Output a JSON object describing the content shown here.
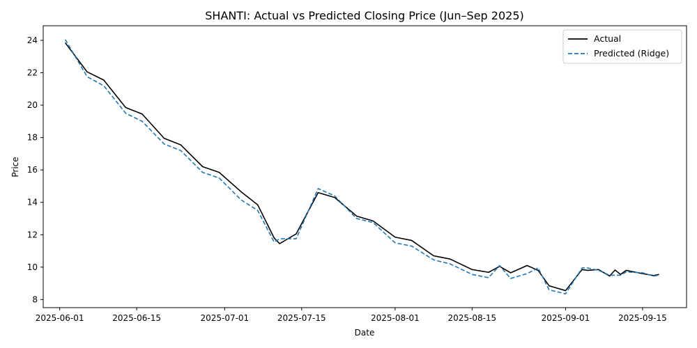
{
  "chart_data": {
    "type": "line",
    "title": "SHANTI: Actual vs Predicted Closing Price (Jun–Sep 2025)",
    "xlabel": "Date",
    "ylabel": "Price",
    "xlim": [
      "2025-05-29",
      "2025-09-23"
    ],
    "ylim": [
      7.5,
      24.9
    ],
    "x_ticks": [
      "2025-06-01",
      "2025-06-15",
      "2025-07-01",
      "2025-07-15",
      "2025-08-01",
      "2025-08-15",
      "2025-09-01",
      "2025-09-15"
    ],
    "y_ticks": [
      8,
      10,
      12,
      14,
      16,
      18,
      20,
      22,
      24
    ],
    "grid": false,
    "legend_position": "top-right",
    "series": [
      {
        "name": "Actual",
        "color": "#000000",
        "style": "solid",
        "x": [
          "2025-06-02",
          "2025-06-06",
          "2025-06-09",
          "2025-06-13",
          "2025-06-16",
          "2025-06-20",
          "2025-06-23",
          "2025-06-27",
          "2025-06-30",
          "2025-07-04",
          "2025-07-07",
          "2025-07-10",
          "2025-07-11",
          "2025-07-14",
          "2025-07-18",
          "2025-07-21",
          "2025-07-25",
          "2025-07-28",
          "2025-08-01",
          "2025-08-04",
          "2025-08-08",
          "2025-08-11",
          "2025-08-15",
          "2025-08-18",
          "2025-08-20",
          "2025-08-22",
          "2025-08-25",
          "2025-08-27",
          "2025-08-29",
          "2025-09-01",
          "2025-09-04",
          "2025-09-05",
          "2025-09-07",
          "2025-09-09",
          "2025-09-10",
          "2025-09-11",
          "2025-09-12",
          "2025-09-15",
          "2025-09-17",
          "2025-09-18"
        ],
        "values": [
          23.85,
          22.05,
          21.55,
          19.85,
          19.45,
          17.95,
          17.55,
          16.2,
          15.85,
          14.65,
          13.85,
          11.8,
          11.45,
          12.05,
          14.6,
          14.3,
          13.15,
          12.85,
          11.85,
          11.65,
          10.7,
          10.5,
          9.85,
          9.68,
          10.05,
          9.65,
          10.1,
          9.8,
          8.85,
          8.55,
          9.85,
          9.8,
          9.85,
          9.45,
          9.82,
          9.55,
          9.8,
          9.6,
          9.48,
          9.55
        ]
      },
      {
        "name": "Predicted (Ridge)",
        "color": "#1f77b4",
        "style": "dashed",
        "x": [
          "2025-06-02",
          "2025-06-06",
          "2025-06-09",
          "2025-06-13",
          "2025-06-16",
          "2025-06-20",
          "2025-06-23",
          "2025-06-27",
          "2025-06-30",
          "2025-07-04",
          "2025-07-07",
          "2025-07-10",
          "2025-07-11",
          "2025-07-14",
          "2025-07-18",
          "2025-07-21",
          "2025-07-25",
          "2025-07-28",
          "2025-08-01",
          "2025-08-04",
          "2025-08-08",
          "2025-08-11",
          "2025-08-15",
          "2025-08-18",
          "2025-08-20",
          "2025-08-22",
          "2025-08-25",
          "2025-08-27",
          "2025-08-29",
          "2025-09-01",
          "2025-09-04",
          "2025-09-05",
          "2025-09-07",
          "2025-09-09",
          "2025-09-10",
          "2025-09-11",
          "2025-09-12",
          "2025-09-15",
          "2025-09-17",
          "2025-09-18"
        ],
        "values": [
          24.05,
          21.75,
          21.2,
          19.5,
          19.0,
          17.6,
          17.2,
          15.85,
          15.5,
          14.15,
          13.5,
          11.55,
          11.75,
          11.75,
          14.85,
          14.4,
          13.0,
          12.75,
          11.5,
          11.3,
          10.45,
          10.2,
          9.55,
          9.35,
          10.1,
          9.3,
          9.6,
          9.95,
          8.6,
          8.35,
          9.95,
          9.95,
          9.8,
          9.5,
          9.5,
          9.5,
          9.7,
          9.65,
          9.45,
          9.5
        ]
      }
    ]
  }
}
